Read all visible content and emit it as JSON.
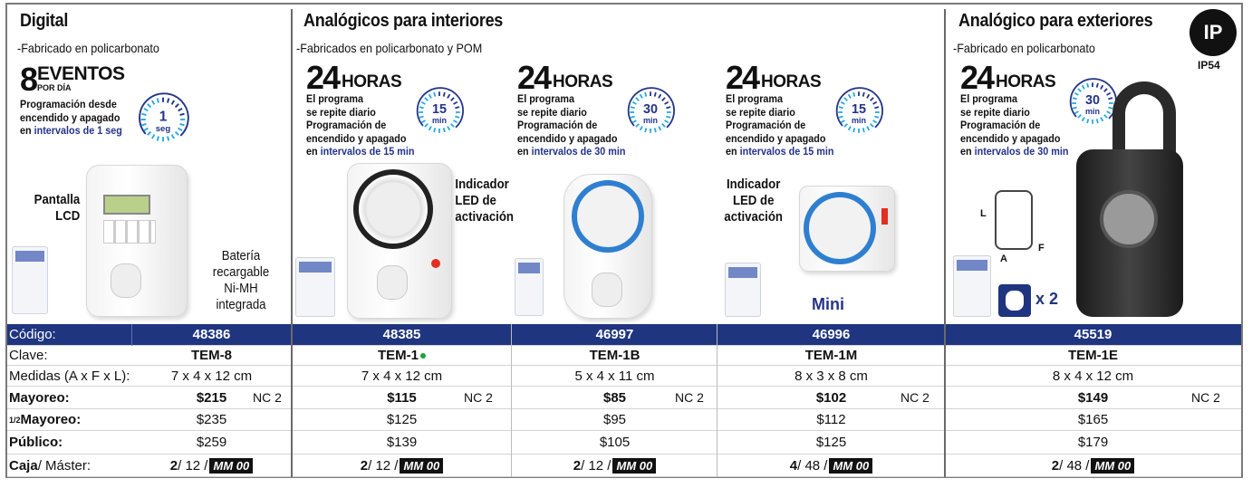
{
  "sections": {
    "digital": {
      "title": "Digital",
      "subtitle": "-Fabricado en policarbonato",
      "big_number": "8",
      "big_word": "EVENTOS",
      "big_sub": "POR DÍA",
      "lines": [
        "Programación desde",
        "encendido y apagado"
      ],
      "line_prefix": "en ",
      "line_highlight": "intervalos de 1 seg",
      "clock": {
        "value": "1",
        "unit": "seg"
      },
      "callouts": {
        "lcd": [
          "Pantalla",
          "LCD"
        ],
        "battery": [
          "Batería",
          "recargable",
          "Ni-MH",
          "integrada"
        ]
      }
    },
    "interiores": {
      "title": "Analógicos para interiores",
      "subtitle": "-Fabricados en policarbonato y POM",
      "blocks": [
        {
          "big_number": "24",
          "big_word": "HORAS",
          "lines": [
            "El programa",
            "se repite diario",
            "Programación de",
            "encendido y apagado"
          ],
          "line_prefix": "en ",
          "line_highlight": "intervalos de 15 min",
          "clock": {
            "value": "15",
            "unit": "min"
          }
        },
        {
          "big_number": "24",
          "big_word": "HORAS",
          "lines": [
            "El programa",
            "se repite diario",
            "Programación de",
            "encendido y apagado"
          ],
          "line_prefix": "en ",
          "line_highlight": "intervalos de 30 min",
          "clock": {
            "value": "30",
            "unit": "min"
          }
        },
        {
          "big_number": "24",
          "big_word": "HORAS",
          "lines": [
            "El programa",
            "se repite diario",
            "Programación de",
            "encendido y apagado"
          ],
          "line_prefix": "en ",
          "line_highlight": "intervalos de 15 min",
          "clock": {
            "value": "15",
            "unit": "min"
          }
        }
      ],
      "callout_led": [
        "Indicador",
        "LED de",
        "activación"
      ],
      "mini_label": "Mini"
    },
    "exteriores": {
      "title": "Analógico para exteriores",
      "subtitle": "-Fabricado en policarbonato",
      "badge": "IP54",
      "badge_logo": "IP",
      "block": {
        "big_number": "24",
        "big_word": "HORAS",
        "lines": [
          "El programa",
          "se repite diario",
          "Programación de",
          "encendido y apagado"
        ],
        "line_prefix": "en ",
        "line_highlight": "intervalos de 30 min",
        "clock": {
          "value": "30",
          "unit": "min"
        }
      },
      "dims": {
        "l": "L",
        "a": "A",
        "f": "F"
      },
      "outlet_count": "x 2"
    }
  },
  "table": {
    "labels": {
      "codigo": "Código:",
      "clave": "Clave:",
      "medidas": "Medidas (A x F x L):",
      "mayoreo": "Mayoreo:",
      "medio_prefix": "1/2",
      "medio": " Mayoreo:",
      "publico": "Público:",
      "caja": "Caja",
      "master": " / Máster:"
    },
    "products": [
      {
        "codigo": "48386",
        "clave": "TEM-8",
        "medidas": "7 x 4 x 12 cm",
        "mayoreo": "$215",
        "nc": "NC 2",
        "medio": "$235",
        "publico": "$259",
        "caja": "2",
        "master": " / 12 / ",
        "mm": "MM 00"
      },
      {
        "codigo": "48385",
        "clave": "TEM-1",
        "clave_dot": "#1aa33a",
        "medidas": "7 x 4 x 12 cm",
        "mayoreo": "$115",
        "nc": "NC 2",
        "medio": "$125",
        "publico": "$139",
        "caja": "2",
        "master": " / 12 / ",
        "mm": "MM 00"
      },
      {
        "codigo": "46997",
        "clave": "TEM-1B",
        "medidas": "5 x 4 x 11 cm",
        "mayoreo": "$85",
        "nc": "NC 2",
        "medio": "$95",
        "publico": "$105",
        "caja": "2",
        "master": " / 12 / ",
        "mm": "MM 00"
      },
      {
        "codigo": "46996",
        "clave": "TEM-1M",
        "medidas": "8 x 3 x 8 cm",
        "mayoreo": "$102",
        "nc": "NC 2",
        "medio": "$112",
        "publico": "$125",
        "caja": "4",
        "master": " / 48 / ",
        "mm": "MM 00"
      },
      {
        "codigo": "45519",
        "clave": "TEM-1E",
        "medidas": "8 x 4 x 12 cm",
        "mayoreo": "$149",
        "nc": "NC 2",
        "medio": "$165",
        "publico": "$179",
        "caja": "2",
        "master": " / 48 / ",
        "mm": "MM 00"
      }
    ]
  },
  "colors": {
    "navy": "#1f3580",
    "highlight": "#24348a",
    "clock_light": "#27a9e1",
    "led": "#e03020"
  }
}
